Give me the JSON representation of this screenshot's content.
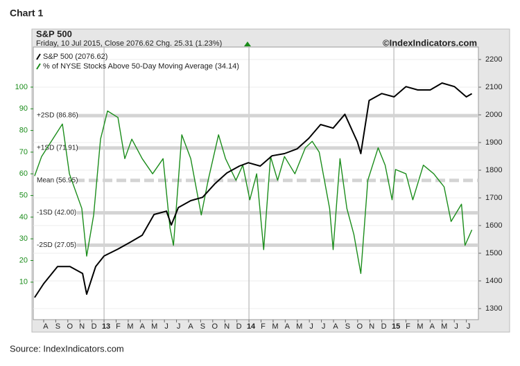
{
  "heading": "Chart 1",
  "source": "Source: IndexIndicators.com",
  "chart_data": {
    "type": "line",
    "title": "S&P 500",
    "subtitle": "Friday, 10 Jul 2015, Close 2076.62 Chg. 25.31 (1.23%)",
    "watermark": "©IndexIndicators.com",
    "xlim": [
      -0.86,
      36
    ],
    "xticks": [
      {
        "value": 0,
        "label": "A"
      },
      {
        "value": 1,
        "label": "S"
      },
      {
        "value": 2,
        "label": "O"
      },
      {
        "value": 3,
        "label": "N"
      },
      {
        "value": 4,
        "label": "D"
      },
      {
        "value": 5,
        "label": "13"
      },
      {
        "value": 6,
        "label": "F"
      },
      {
        "value": 7,
        "label": "M"
      },
      {
        "value": 8,
        "label": "A"
      },
      {
        "value": 9,
        "label": "M"
      },
      {
        "value": 10,
        "label": "J"
      },
      {
        "value": 11,
        "label": "J"
      },
      {
        "value": 12,
        "label": "A"
      },
      {
        "value": 13,
        "label": "S"
      },
      {
        "value": 14,
        "label": "O"
      },
      {
        "value": 15,
        "label": "N"
      },
      {
        "value": 16,
        "label": "D"
      },
      {
        "value": 17,
        "label": "14"
      },
      {
        "value": 18,
        "label": "F"
      },
      {
        "value": 19,
        "label": "M"
      },
      {
        "value": 20,
        "label": "A"
      },
      {
        "value": 21,
        "label": "M"
      },
      {
        "value": 22,
        "label": "J"
      },
      {
        "value": 23,
        "label": "J"
      },
      {
        "value": 24,
        "label": "A"
      },
      {
        "value": 25,
        "label": "S"
      },
      {
        "value": 26,
        "label": "O"
      },
      {
        "value": 27,
        "label": "N"
      },
      {
        "value": 28,
        "label": "D"
      },
      {
        "value": 29,
        "label": "15"
      },
      {
        "value": 30,
        "label": "F"
      },
      {
        "value": 31,
        "label": "M"
      },
      {
        "value": 32,
        "label": "A"
      },
      {
        "value": 33,
        "label": "M"
      },
      {
        "value": 34,
        "label": "J"
      },
      {
        "value": 35,
        "label": "J"
      }
    ],
    "year_lines": [
      5,
      17,
      29
    ],
    "ylim": [
      -7.3,
      118.5
    ],
    "yticks": [
      10,
      20,
      30,
      40,
      50,
      60,
      70,
      80,
      90,
      100
    ],
    "y2lim": [
      1260,
      2245
    ],
    "y2ticks": [
      1300,
      1400,
      1500,
      1600,
      1700,
      1800,
      1900,
      2000,
      2100,
      2200
    ],
    "reference_lines": [
      {
        "label": "+2SD (86.86)",
        "value": 86.86
      },
      {
        "label": "+1SD (71.91)",
        "value": 71.91
      },
      {
        "label": "Mean (56.95)",
        "value": 56.95,
        "dashed": true
      },
      {
        "label": "-1SD (42.00)",
        "value": 42.0
      },
      {
        "label": "-2SD (27.05)",
        "value": 27.05
      }
    ],
    "series": [
      {
        "name": "S&P 500 (2076.62)",
        "color": "#000000",
        "axis": "y2",
        "x": [
          -0.75,
          0,
          1.15,
          2.18,
          3.22,
          3.56,
          4.31,
          5,
          6.15,
          7.18,
          8.16,
          9.14,
          10.17,
          10.57,
          11.15,
          12.18,
          13.16,
          14.2,
          15.17,
          16.21,
          16.95,
          17.93,
          18.91,
          19.94,
          20.98,
          21.95,
          22.93,
          23.97,
          24.94,
          25.98,
          26.26,
          26.95,
          27.99,
          29.02,
          30,
          30.98,
          32.01,
          32.99,
          34.02,
          35,
          35.46
        ],
        "values": [
          1340,
          1390,
          1452,
          1452,
          1427,
          1352,
          1452,
          1490,
          1515,
          1540,
          1565,
          1640,
          1652,
          1602,
          1665,
          1690,
          1702,
          1752,
          1790,
          1815,
          1827,
          1815,
          1852,
          1860,
          1877,
          1915,
          1965,
          1952,
          2002,
          1902,
          1860,
          2052,
          2077,
          2065,
          2102,
          2090,
          2090,
          2115,
          2102,
          2065,
          2076.62
        ]
      },
      {
        "name": "% of NYSE Stocks Above 50-Day Moving Average (34.14)",
        "color": "#1a8c1a",
        "x": [
          -0.75,
          -0.17,
          1.55,
          2.13,
          3.16,
          3.56,
          4.14,
          4.71,
          5.29,
          6.15,
          6.72,
          7.3,
          8.16,
          9.02,
          9.89,
          10.46,
          10.75,
          11.44,
          12.18,
          13.05,
          13.62,
          14.48,
          15.06,
          15.92,
          16.49,
          17.07,
          17.64,
          18.22,
          18.79,
          19.37,
          19.94,
          20.8,
          21.67,
          22.24,
          22.82,
          23.68,
          23.97,
          24.54,
          25.11,
          25.69,
          26.26,
          26.84,
          27.7,
          28.28,
          28.85,
          29.14,
          30.0,
          30.57,
          31.44,
          32.3,
          33.16,
          33.74,
          34.6,
          34.89,
          35.46
        ],
        "values": [
          59,
          68,
          83,
          60,
          44,
          22,
          41,
          76,
          89,
          86,
          67,
          76,
          67,
          60,
          67,
          35,
          27,
          78,
          67,
          41,
          57,
          78,
          67,
          57,
          64,
          48,
          60,
          25,
          68,
          57,
          68,
          60,
          72,
          75,
          70,
          44,
          25,
          67,
          44,
          32,
          14,
          57,
          72,
          64,
          48,
          62,
          60,
          48,
          64,
          60,
          54,
          38,
          46,
          27,
          34.14
        ]
      }
    ]
  }
}
